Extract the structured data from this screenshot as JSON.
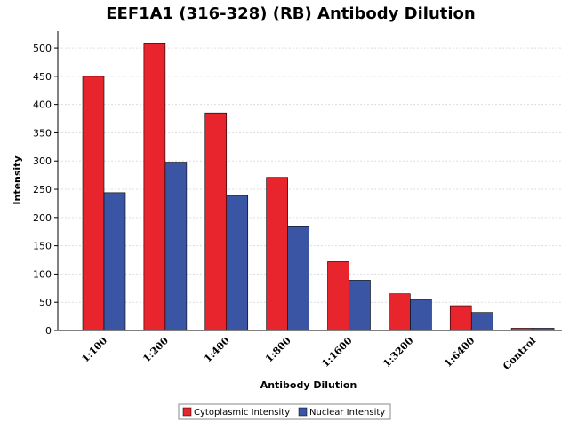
{
  "chart_data": {
    "type": "bar",
    "title": "EEF1A1 (316-328) (RB) Antibody Dilution",
    "xlabel": "Antibody Dilution",
    "ylabel": "Intensity",
    "categories": [
      "1:100",
      "1:200",
      "1:400",
      "1:800",
      "1:1600",
      "1:3200",
      "1:6400",
      "Control"
    ],
    "series": [
      {
        "name": "Cytoplasmic Intensity",
        "color": "#e8242c",
        "values": [
          450,
          509,
          385,
          271,
          122,
          65,
          44,
          4
        ]
      },
      {
        "name": "Nuclear Intensity",
        "color": "#3a55a4",
        "values": [
          244,
          298,
          239,
          185,
          89,
          55,
          32,
          4
        ]
      }
    ],
    "ylim": [
      0,
      530
    ],
    "yticks": [
      0,
      50,
      100,
      150,
      200,
      250,
      300,
      350,
      400,
      450,
      500
    ],
    "grid": true,
    "legend_position": "bottom-center"
  }
}
